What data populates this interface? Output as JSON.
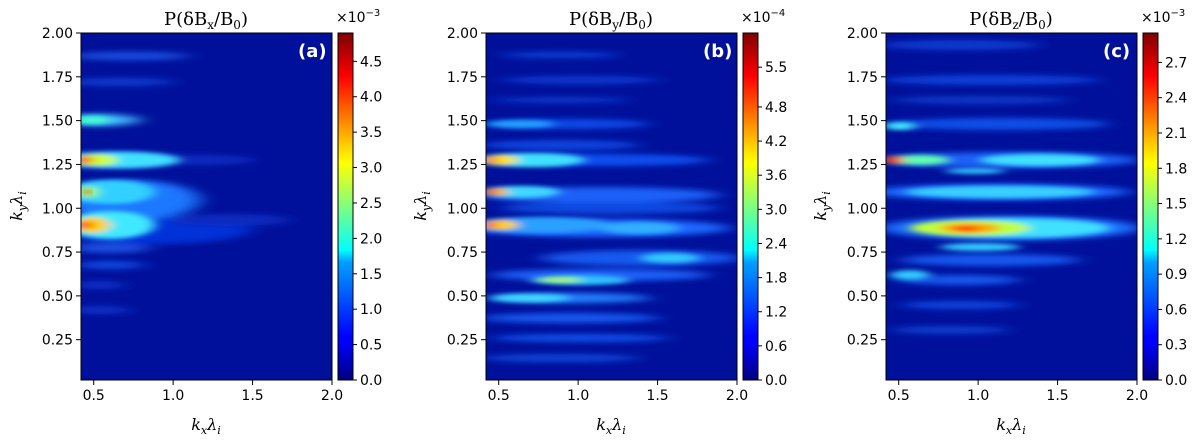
{
  "chart_data": [
    {
      "type": "heatmap",
      "panel_label": "(a)",
      "title": {
        "base": "P(δB",
        "sub": "x",
        "mid": "/B",
        "sub2": "0",
        "end": ")"
      },
      "xlabel": {
        "k": "k",
        "ksub": "x",
        "l": "λ",
        "lsub": "i"
      },
      "ylabel": {
        "k": "k",
        "ksub": "y",
        "l": "λ",
        "lsub": "i"
      },
      "xlim": [
        0.42,
        2.0
      ],
      "ylim": [
        0.02,
        2.0
      ],
      "xticks": [
        {
          "v": 0.5,
          "label": "0.5"
        },
        {
          "v": 1.0,
          "label": "1.0"
        },
        {
          "v": 1.5,
          "label": "1.5"
        },
        {
          "v": 2.0,
          "label": "2.0"
        }
      ],
      "yticks": [
        {
          "v": 0.25,
          "label": "0.25"
        },
        {
          "v": 0.5,
          "label": "0.50"
        },
        {
          "v": 0.75,
          "label": "0.75"
        },
        {
          "v": 1.0,
          "label": "1.00"
        },
        {
          "v": 1.25,
          "label": "1.25"
        },
        {
          "v": 1.5,
          "label": "1.50"
        },
        {
          "v": 1.75,
          "label": "1.75"
        },
        {
          "v": 2.0,
          "label": "2.00"
        }
      ],
      "colorbar": {
        "min": 0,
        "max": 0.0049,
        "multiplier_base": "×10",
        "multiplier_exp": "−3",
        "ticks": [
          {
            "v": 0.0,
            "label": "0.0"
          },
          {
            "v": 0.0005,
            "label": "0.5"
          },
          {
            "v": 0.001,
            "label": "1.0"
          },
          {
            "v": 0.0015,
            "label": "1.5"
          },
          {
            "v": 0.002,
            "label": "2.0"
          },
          {
            "v": 0.0025,
            "label": "2.5"
          },
          {
            "v": 0.003,
            "label": "3.0"
          },
          {
            "v": 0.0035,
            "label": "3.5"
          },
          {
            "v": 0.004,
            "label": "4.0"
          },
          {
            "v": 0.0045,
            "label": "4.5"
          }
        ]
      },
      "features": [
        {
          "kx": 0.42,
          "ky": 1.27,
          "value": 0.0049
        },
        {
          "kx": 0.42,
          "ky": 1.08,
          "value": 0.0047
        },
        {
          "kx": 0.42,
          "ky": 0.9,
          "value": 0.0046
        },
        {
          "kx": 0.42,
          "ky": 1.5,
          "value": 0.002
        },
        {
          "kx": 0.7,
          "ky": 0.95,
          "value": 0.0017
        },
        {
          "kx": 0.8,
          "ky": 1.27,
          "value": 0.001
        },
        {
          "kx": 0.6,
          "ky": 1.73,
          "value": 0.0008
        },
        {
          "kx": 1.2,
          "ky": 0.88,
          "value": 0.0006
        }
      ]
    },
    {
      "type": "heatmap",
      "panel_label": "(b)",
      "title": {
        "base": "P(δB",
        "sub": "y",
        "mid": "/B",
        "sub2": "0",
        "end": ")"
      },
      "xlabel": {
        "k": "k",
        "ksub": "x",
        "l": "λ",
        "lsub": "i"
      },
      "ylabel": {
        "k": "k",
        "ksub": "y",
        "l": "λ",
        "lsub": "i"
      },
      "xlim": [
        0.42,
        2.0
      ],
      "ylim": [
        0.02,
        2.0
      ],
      "xticks": [
        {
          "v": 0.5,
          "label": "0.5"
        },
        {
          "v": 1.0,
          "label": "1.0"
        },
        {
          "v": 1.5,
          "label": "1.5"
        },
        {
          "v": 2.0,
          "label": "2.0"
        }
      ],
      "yticks": [
        {
          "v": 0.25,
          "label": "0.25"
        },
        {
          "v": 0.5,
          "label": "0.50"
        },
        {
          "v": 0.75,
          "label": "0.75"
        },
        {
          "v": 1.0,
          "label": "1.00"
        },
        {
          "v": 1.25,
          "label": "1.25"
        },
        {
          "v": 1.5,
          "label": "1.50"
        },
        {
          "v": 1.75,
          "label": "1.75"
        },
        {
          "v": 2.0,
          "label": "2.00"
        }
      ],
      "colorbar": {
        "min": 0,
        "max": 0.00061,
        "multiplier_base": "×10",
        "multiplier_exp": "−4",
        "ticks": [
          {
            "v": 0.0,
            "label": "0.0"
          },
          {
            "v": 6e-05,
            "label": "0.6"
          },
          {
            "v": 0.00012,
            "label": "1.2"
          },
          {
            "v": 0.00018,
            "label": "1.8"
          },
          {
            "v": 0.00024,
            "label": "2.4"
          },
          {
            "v": 0.0003,
            "label": "3.0"
          },
          {
            "v": 0.00036,
            "label": "3.6"
          },
          {
            "v": 0.00042,
            "label": "4.2"
          },
          {
            "v": 0.00048,
            "label": "4.8"
          },
          {
            "v": 0.00055,
            "label": "5.5"
          }
        ]
      },
      "features": [
        {
          "kx": 0.42,
          "ky": 0.91,
          "value": 0.00061
        },
        {
          "kx": 0.42,
          "ky": 1.07,
          "value": 0.00058
        },
        {
          "kx": 0.45,
          "ky": 1.27,
          "value": 0.00035
        },
        {
          "kx": 0.85,
          "ky": 0.6,
          "value": 0.00035
        },
        {
          "kx": 1.25,
          "ky": 0.72,
          "value": 0.00028
        },
        {
          "kx": 0.6,
          "ky": 0.47,
          "value": 0.00025
        },
        {
          "kx": 1.1,
          "ky": 0.97,
          "value": 0.00022
        },
        {
          "kx": 0.55,
          "ky": 1.5,
          "value": 0.00015
        }
      ]
    },
    {
      "type": "heatmap",
      "panel_label": "(c)",
      "title": {
        "base": "P(δB",
        "sub": "z",
        "mid": "/B",
        "sub2": "0",
        "end": ")"
      },
      "xlabel": {
        "k": "k",
        "ksub": "x",
        "l": "λ",
        "lsub": "i"
      },
      "ylabel": {
        "k": "k",
        "ksub": "y",
        "l": "λ",
        "lsub": "i"
      },
      "xlim": [
        0.42,
        2.0
      ],
      "ylim": [
        0.02,
        2.0
      ],
      "xticks": [
        {
          "v": 0.5,
          "label": "0.5"
        },
        {
          "v": 1.0,
          "label": "1.0"
        },
        {
          "v": 1.5,
          "label": "1.5"
        },
        {
          "v": 2.0,
          "label": "2.0"
        }
      ],
      "yticks": [
        {
          "v": 0.25,
          "label": "0.25"
        },
        {
          "v": 0.5,
          "label": "0.50"
        },
        {
          "v": 0.75,
          "label": "0.75"
        },
        {
          "v": 1.0,
          "label": "1.00"
        },
        {
          "v": 1.25,
          "label": "1.25"
        },
        {
          "v": 1.5,
          "label": "1.50"
        },
        {
          "v": 1.75,
          "label": "1.75"
        },
        {
          "v": 2.0,
          "label": "2.00"
        }
      ],
      "colorbar": {
        "min": 0,
        "max": 0.00295,
        "multiplier_base": "×10",
        "multiplier_exp": "−3",
        "ticks": [
          {
            "v": 0.0,
            "label": "0.0"
          },
          {
            "v": 0.0003,
            "label": "0.3"
          },
          {
            "v": 0.0006,
            "label": "0.6"
          },
          {
            "v": 0.0009,
            "label": "0.9"
          },
          {
            "v": 0.0012,
            "label": "1.2"
          },
          {
            "v": 0.0015,
            "label": "1.5"
          },
          {
            "v": 0.0018,
            "label": "1.8"
          },
          {
            "v": 0.0021,
            "label": "2.1"
          },
          {
            "v": 0.0024,
            "label": "2.4"
          },
          {
            "v": 0.0027,
            "label": "2.7"
          }
        ]
      },
      "features": [
        {
          "kx": 0.82,
          "ky": 0.88,
          "value": 0.00295
        },
        {
          "kx": 0.5,
          "ky": 0.91,
          "value": 0.0022
        },
        {
          "kx": 0.42,
          "ky": 1.27,
          "value": 0.0021
        },
        {
          "kx": 1.2,
          "ky": 0.92,
          "value": 0.0012
        },
        {
          "kx": 1.0,
          "ky": 1.27,
          "value": 0.0011
        },
        {
          "kx": 0.7,
          "ky": 1.08,
          "value": 0.001
        },
        {
          "kx": 0.45,
          "ky": 1.48,
          "value": 0.0009
        },
        {
          "kx": 0.85,
          "ky": 0.8,
          "value": 0.0008
        }
      ]
    }
  ]
}
